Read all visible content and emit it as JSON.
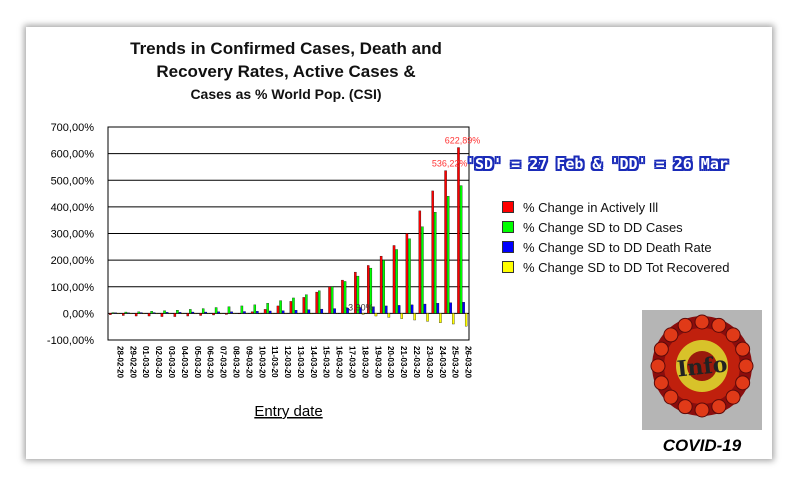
{
  "chart_data": {
    "type": "bar",
    "title_lines": [
      "Trends in Confirmed Cases, Death and",
      "Recovery Rates, Active Cases &",
      "Cases as % World Pop. (CSI)"
    ],
    "xlabel": "Entry date",
    "ylabel": "",
    "ylim": [
      -100,
      700
    ],
    "y_ticks": [
      "700,00%",
      "600,00%",
      "500,00%",
      "400,00%",
      "300,00%",
      "200,00%",
      "100,00%",
      "0,00%",
      "-100,00%"
    ],
    "y_tick_values": [
      700,
      600,
      500,
      400,
      300,
      200,
      100,
      0,
      -100
    ],
    "grid": true,
    "legend_position": "right",
    "categories": [
      "28-02-20",
      "29-02-20",
      "01-03-20",
      "02-03-20",
      "03-03-20",
      "04-03-20",
      "05-03-20",
      "06-03-20",
      "07-03-20",
      "08-03-20",
      "09-03-20",
      "10-03-20",
      "11-03-20",
      "12-03-20",
      "13-03-20",
      "14-03-20",
      "15-03-20",
      "16-03-20",
      "17-03-20",
      "18-03-20",
      "19-03-20",
      "20-03-20",
      "21-03-20",
      "22-03-20",
      "23-03-20",
      "24-03-20",
      "25-03-20",
      "26-03-20"
    ],
    "series": [
      {
        "name": "% Change in Actively Ill",
        "color": "#ff0000",
        "values": [
          -5,
          -8,
          -10,
          -10,
          -12,
          -12,
          -10,
          -8,
          -6,
          -4,
          0,
          6,
          15,
          28,
          45,
          60,
          80,
          100,
          125,
          155,
          180,
          215,
          255,
          300,
          385,
          460,
          536.22,
          622.89
        ]
      },
      {
        "name": "% Change SD to DD Cases",
        "color": "#00ff00",
        "values": [
          3,
          5,
          6,
          8,
          10,
          12,
          15,
          18,
          22,
          25,
          28,
          32,
          38,
          48,
          58,
          70,
          85,
          100,
          120,
          140,
          170,
          200,
          240,
          280,
          325,
          380,
          440,
          480
        ]
      },
      {
        "name": "% Change SD to DD Death Rate",
        "color": "#0000ff",
        "values": [
          2,
          2,
          3,
          3,
          4,
          4,
          5,
          5,
          6,
          6,
          7,
          8,
          9,
          10,
          12,
          14,
          16,
          18,
          20,
          22,
          25,
          28,
          30,
          32,
          35,
          38,
          40,
          42
        ]
      },
      {
        "name": "% Change SD to DD Tot Recovered",
        "color": "#ffff00",
        "values": [
          0,
          0,
          0,
          0,
          0,
          0,
          0,
          0,
          0,
          0,
          0,
          0,
          0,
          0,
          0,
          0,
          0,
          0,
          0,
          -3.9,
          -10,
          -15,
          -20,
          -25,
          -30,
          -35,
          -40,
          -48
        ]
      }
    ],
    "data_labels": [
      {
        "text": "622,89%",
        "category_index": 27,
        "value": 622.89,
        "color": "#ff3333"
      },
      {
        "text": "536,22%",
        "category_index": 26,
        "value": 536.22,
        "color": "#ff3333"
      },
      {
        "text": "-3,90%",
        "category_index": 19,
        "value": -3.9,
        "color": "#333333"
      }
    ]
  },
  "annotation": "'SD' = 27 Feb & 'DD' = 26 Mar",
  "logo": {
    "text": "Info",
    "caption": "COVID-19"
  }
}
